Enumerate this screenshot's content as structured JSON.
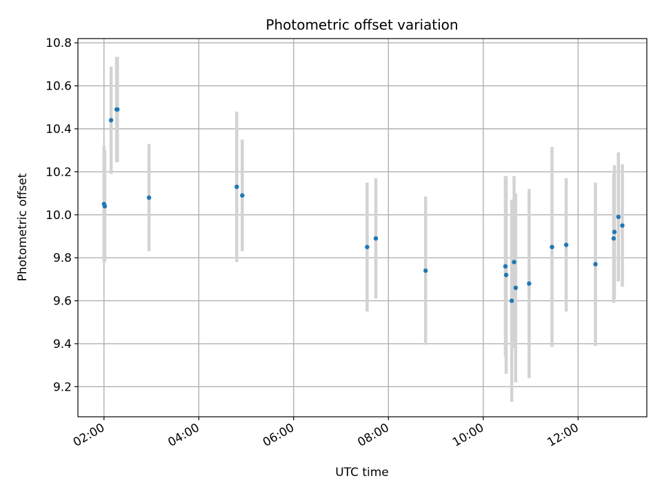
{
  "chart_data": {
    "type": "scatter",
    "title": "Photometric offset variation",
    "xlabel": "UTC time",
    "ylabel": "Photometric offset",
    "x_axis_type": "time",
    "xlim": [
      "01:27",
      "13:27"
    ],
    "ylim": [
      9.06,
      10.82
    ],
    "x_ticks": [
      "02:00",
      "04:00",
      "06:00",
      "08:00",
      "10:00",
      "12:00"
    ],
    "y_ticks": [
      9.2,
      9.4,
      9.6,
      9.8,
      10.0,
      10.2,
      10.4,
      10.6,
      10.8
    ],
    "grid": true,
    "legend": "none",
    "colors": {
      "point": "#1f77b4",
      "errorbar": "#d3d3d3",
      "grid": "#b0b0b0"
    },
    "points": [
      {
        "x": "02:00",
        "y": 10.05,
        "yerr": 0.27
      },
      {
        "x": "02:01",
        "y": 10.04,
        "yerr": 0.26
      },
      {
        "x": "02:09",
        "y": 10.44,
        "yerr": 0.25
      },
      {
        "x": "02:16",
        "y": 10.49,
        "yerr": 0.245
      },
      {
        "x": "02:17",
        "y": 10.49,
        "yerr": 0.245
      },
      {
        "x": "02:57",
        "y": 10.08,
        "yerr": 0.25
      },
      {
        "x": "04:48",
        "y": 10.13,
        "yerr": 0.35
      },
      {
        "x": "04:55",
        "y": 10.09,
        "yerr": 0.26
      },
      {
        "x": "07:33",
        "y": 9.85,
        "yerr": 0.3
      },
      {
        "x": "07:44",
        "y": 9.89,
        "yerr": 0.28
      },
      {
        "x": "08:47",
        "y": 9.74,
        "yerr": 0.345
      },
      {
        "x": "10:28",
        "y": 9.76,
        "yerr": 0.42
      },
      {
        "x": "10:29",
        "y": 9.72,
        "yerr": 0.46
      },
      {
        "x": "10:36",
        "y": 9.6,
        "yerr": 0.47
      },
      {
        "x": "10:39",
        "y": 9.78,
        "yerr": 0.4
      },
      {
        "x": "10:41",
        "y": 9.66,
        "yerr": 0.44
      },
      {
        "x": "10:58",
        "y": 9.68,
        "yerr": 0.44
      },
      {
        "x": "11:27",
        "y": 9.85,
        "yerr": 0.465
      },
      {
        "x": "11:45",
        "y": 9.86,
        "yerr": 0.31
      },
      {
        "x": "12:22",
        "y": 9.77,
        "yerr": 0.38
      },
      {
        "x": "12:45",
        "y": 9.89,
        "yerr": 0.3
      },
      {
        "x": "12:46",
        "y": 9.92,
        "yerr": 0.31
      },
      {
        "x": "12:51",
        "y": 9.99,
        "yerr": 0.3
      },
      {
        "x": "12:56",
        "y": 9.95,
        "yerr": 0.285
      }
    ]
  }
}
